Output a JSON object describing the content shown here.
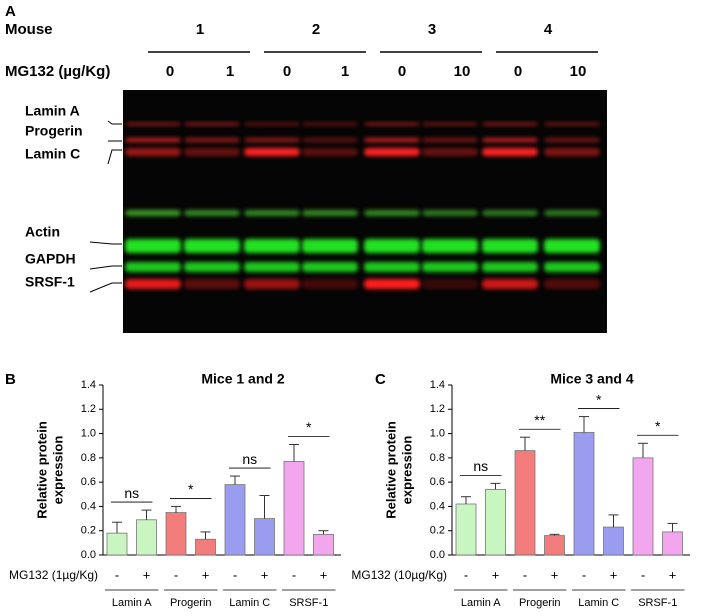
{
  "blot": {
    "panel": "A",
    "mouse_label": "Mouse",
    "mice": [
      "1",
      "2",
      "3",
      "4"
    ],
    "dose_label": "MG132 (µg/Kg)",
    "doses": [
      "0",
      "1",
      "0",
      "1",
      "0",
      "10",
      "0",
      "10"
    ],
    "band_labels": [
      "Lamin A",
      "Progerin",
      "Lamin C",
      "Actin",
      "GAPDH",
      "SRSF-1"
    ]
  },
  "chart_data": [
    {
      "type": "bar",
      "panel": "B",
      "title": "Mice 1 and 2",
      "ylabel": [
        "Relative protein",
        "expression"
      ],
      "treatment_label": "MG132 (1µg/Kg)",
      "categories": [
        "-",
        "+",
        "-",
        "+",
        "-",
        "+",
        "-",
        "+"
      ],
      "groups": [
        "Lamin A",
        "Progerin",
        "Lamin C",
        "SRSF-1"
      ],
      "group_colors": [
        "#c8f5c0",
        "#f27b7b",
        "#9a9cf0",
        "#f2a6ee"
      ],
      "values": [
        0.18,
        0.29,
        0.35,
        0.13,
        0.58,
        0.3,
        0.77,
        0.17
      ],
      "errors": [
        0.09,
        0.08,
        0.05,
        0.06,
        0.07,
        0.19,
        0.14,
        0.03
      ],
      "significance": [
        "ns",
        "*",
        "ns",
        "*"
      ],
      "ylim": [
        0,
        1.4
      ],
      "yticks": [
        {
          "value": 0,
          "label": "0.0"
        },
        {
          "value": 0.2,
          "label": "0.2"
        },
        {
          "value": 0.4,
          "label": "0.4"
        },
        {
          "value": 0.6,
          "label": "0.6"
        },
        {
          "value": 0.8,
          "label": "0.8"
        },
        {
          "value": 1,
          "label": "1.0"
        },
        {
          "value": 1.2,
          "label": "1.2"
        },
        {
          "value": 1.4,
          "label": "1.4"
        }
      ]
    },
    {
      "type": "bar",
      "panel": "C",
      "title": "Mice 3 and 4",
      "ylabel": [
        "Relative protein",
        "expression"
      ],
      "treatment_label": "MG132 (10µg/Kg)",
      "categories": [
        "-",
        "+",
        "-",
        "+",
        "-",
        "+",
        "-",
        "+"
      ],
      "groups": [
        "Lamin A",
        "Progerin",
        "Lamin C",
        "SRSF-1"
      ],
      "group_colors": [
        "#c8f5c0",
        "#f27b7b",
        "#9a9cf0",
        "#f2a6ee"
      ],
      "values": [
        0.42,
        0.54,
        0.86,
        0.16,
        1.01,
        0.23,
        0.8,
        0.19
      ],
      "errors": [
        0.06,
        0.05,
        0.11,
        0.01,
        0.13,
        0.1,
        0.12,
        0.07
      ],
      "significance": [
        "ns",
        "**",
        "*",
        "*"
      ],
      "ylim": [
        0,
        1.4
      ],
      "yticks": [
        {
          "value": 0,
          "label": "0.0"
        },
        {
          "value": 0.2,
          "label": "0.2"
        },
        {
          "value": 0.4,
          "label": "0.4"
        },
        {
          "value": 0.6,
          "label": "0.6"
        },
        {
          "value": 0.8,
          "label": "0.8"
        },
        {
          "value": 1,
          "label": "1.0"
        },
        {
          "value": 1.2,
          "label": "1.2"
        },
        {
          "value": 1.4,
          "label": "1.4"
        }
      ]
    }
  ]
}
